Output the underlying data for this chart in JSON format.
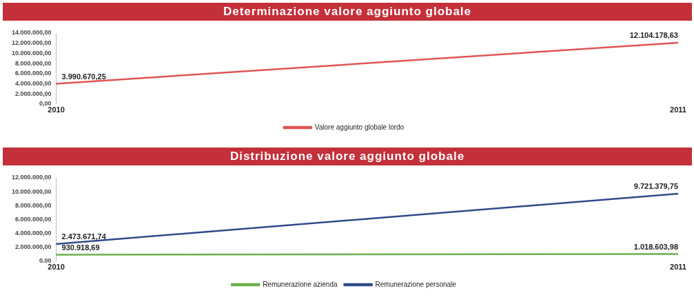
{
  "chart_data": [
    {
      "type": "line",
      "title": "Determinazione valore aggiunto globale",
      "categories": [
        "2010",
        "2011"
      ],
      "series": [
        {
          "name": "Valore aggiunto globale lordo",
          "color": "#e05555",
          "values": [
            3990670.25,
            12104178.63
          ],
          "value_labels": [
            "3.990.670,25",
            "12.104.178,63"
          ]
        }
      ],
      "ylim": [
        0,
        14000000
      ],
      "yticks": [
        {
          "value": 0,
          "label": "0,00"
        },
        {
          "value": 2000000,
          "label": "2.000.000,00"
        },
        {
          "value": 4000000,
          "label": "4.000.000,00"
        },
        {
          "value": 6000000,
          "label": "6.000.000,00"
        },
        {
          "value": 8000000,
          "label": "8.000.000,00"
        },
        {
          "value": 10000000,
          "label": "10.000.000,00"
        },
        {
          "value": 12000000,
          "label": "12.000.000,00"
        },
        {
          "value": 14000000,
          "label": "14.000.000,00"
        }
      ],
      "grid": false,
      "legend": "bottom",
      "marker": "none"
    },
    {
      "type": "line",
      "title": "Distribuzione valore aggiunto globale",
      "categories": [
        "2010",
        "2011"
      ],
      "series": [
        {
          "name": "Remunerazione azienda",
          "color": "#6ab04c",
          "values": [
            930918.69,
            1018603.98
          ],
          "value_labels": [
            "930.918,69",
            "1.018.603,98"
          ]
        },
        {
          "name": "Remunerazione personale",
          "color": "#2e4a8a",
          "values": [
            2473671.74,
            9721379.75
          ],
          "value_labels": [
            "2.473.671,74",
            "9.721.379,75"
          ]
        }
      ],
      "ylim": [
        0,
        12000000
      ],
      "yticks": [
        {
          "value": 0,
          "label": "0.00"
        },
        {
          "value": 2000000,
          "label": "2.000.000,00"
        },
        {
          "value": 4000000,
          "label": "4.000.000,00"
        },
        {
          "value": 6000000,
          "label": "6.000.000,00"
        },
        {
          "value": 8000000,
          "label": "8.000.000,00"
        },
        {
          "value": 10000000,
          "label": "10.000.000,00"
        },
        {
          "value": 12000000,
          "label": "12.000.000,00"
        }
      ],
      "grid": false,
      "legend": "bottom",
      "marker": "none"
    }
  ]
}
